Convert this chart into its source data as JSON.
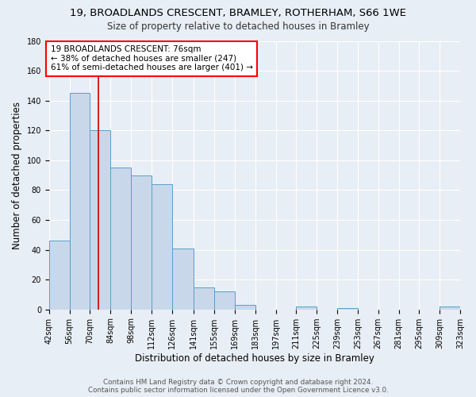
{
  "title": "19, BROADLANDS CRESCENT, BRAMLEY, ROTHERHAM, S66 1WE",
  "subtitle": "Size of property relative to detached houses in Bramley",
  "xlabel": "Distribution of detached houses by size in Bramley",
  "ylabel": "Number of detached properties",
  "bar_edges": [
    42,
    56,
    70,
    84,
    98,
    112,
    126,
    141,
    155,
    169,
    183,
    197,
    211,
    225,
    239,
    253,
    267,
    281,
    295,
    309,
    323
  ],
  "bar_heights": [
    46,
    145,
    120,
    95,
    90,
    84,
    41,
    15,
    12,
    3,
    0,
    0,
    2,
    0,
    1,
    0,
    0,
    0,
    0,
    2
  ],
  "bar_color": "#c8d8ea",
  "bar_edge_color": "#5a9ec8",
  "bar_linewidth": 0.7,
  "vline_x": 76,
  "vline_color": "#cc0000",
  "vline_linewidth": 1.2,
  "annotation_text_line1": "19 BROADLANDS CRESCENT: 76sqm",
  "annotation_text_line2": "← 38% of detached houses are smaller (247)",
  "annotation_text_line3": "61% of semi-detached houses are larger (401) →",
  "ylim": [
    0,
    180
  ],
  "yticks": [
    0,
    20,
    40,
    60,
    80,
    100,
    120,
    140,
    160,
    180
  ],
  "bg_color": "#e8eef5",
  "plot_bg_color": "#e8eef5",
  "grid_color": "#ffffff",
  "title_fontsize": 9.5,
  "subtitle_fontsize": 8.5,
  "ylabel_fontsize": 8.5,
  "xlabel_fontsize": 8.5,
  "tick_fontsize": 7,
  "footer_line1": "Contains HM Land Registry data © Crown copyright and database right 2024.",
  "footer_line2": "Contains public sector information licensed under the Open Government Licence v3.0."
}
